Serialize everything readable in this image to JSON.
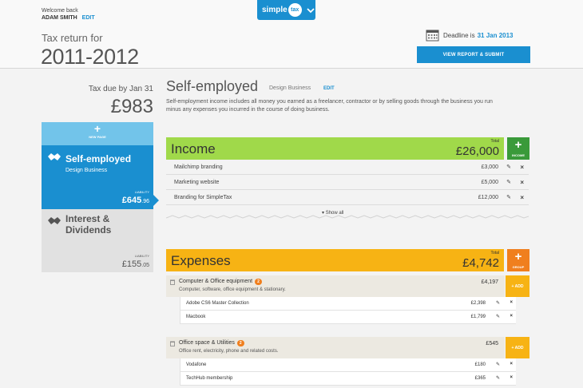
{
  "header": {
    "welcome": "Welcome back",
    "user_name": "ADAM SMITH",
    "edit_label": "EDIT",
    "logo_word": "simple",
    "logo_badge": "tax",
    "tax_return_label": "Tax return for",
    "tax_year": "2011-2012",
    "deadline_label": "Deadline is",
    "deadline_date": "31 Jan 2013",
    "report_button": "VIEW REPORT & SUBMIT"
  },
  "sidebar": {
    "tax_due_label": "Tax due by Jan 31",
    "tax_due_amount": "£983",
    "new_page_label": "NEW PAGE",
    "liability_label": "LIABILITY",
    "cards": [
      {
        "title": "Self-employed",
        "subtitle": "Design Business",
        "amount": "£645",
        "pence": ".96",
        "icon": "handshake-icon"
      },
      {
        "title_line1": "Interest &",
        "title_line2": "Dividends",
        "amount": "£155",
        "pence": ".05",
        "icon": "handshake-icon"
      }
    ]
  },
  "main": {
    "title": "Self-employed",
    "subtitle": "Design Business",
    "edit_label": "EDIT",
    "description": "Self-employment income includes all money you earned as a freelancer, contractor or by selling goods through the business you run minus any expenses you incurred in the course of doing business.",
    "total_label": "Total",
    "income": {
      "name": "Income",
      "total": "£26,000",
      "add_label": "INCOME",
      "rows": [
        {
          "label": "Mailchimp branding",
          "amount": "£3,000"
        },
        {
          "label": "Marketing website",
          "amount": "£5,000"
        },
        {
          "label": "Branding for SimpleTax",
          "amount": "£12,000"
        }
      ],
      "show_all": "Show all"
    },
    "expenses": {
      "name": "Expenses",
      "total": "£4,742",
      "add_label": "GROUP",
      "add_item_label": "+ ADD",
      "groups": [
        {
          "title": "Computer & Office equipment",
          "count": "2",
          "description": "Computer, software, office equipment & stationary.",
          "amount": "£4,197",
          "items": [
            {
              "label": "Adobe CS6 Master Collection",
              "amount": "£2,398"
            },
            {
              "label": "Macbook",
              "amount": "£1,799"
            }
          ]
        },
        {
          "title": "Office space & Utilities",
          "count": "2",
          "description": "Office rent, electricity, phone and related costs.",
          "amount": "£545",
          "items": [
            {
              "label": "Vodafone",
              "amount": "£180"
            },
            {
              "label": "TechHub membership",
              "amount": "£365"
            }
          ]
        }
      ]
    }
  },
  "colors": {
    "primary_blue": "#1a8fd0",
    "income_green": "#a0d94a",
    "income_add_green": "#3a9a3a",
    "expense_yellow": "#f7b314",
    "expense_orange": "#f07f1e"
  }
}
